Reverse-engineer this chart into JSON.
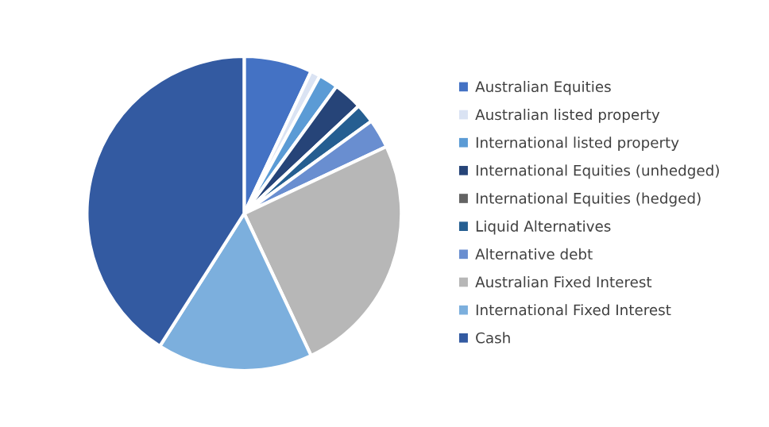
{
  "chart_data": {
    "type": "pie",
    "categories": [
      "Australian Equities",
      "Australian listed property",
      "International listed property",
      "International Equities (unhedged)",
      "International Equities (hedged)",
      "Liquid Alternatives",
      "Alternative debt",
      "Australian Fixed Interest",
      "International Fixed Interest",
      "Cash"
    ],
    "values": [
      7,
      1,
      2,
      3,
      0,
      2,
      3,
      25,
      16,
      41
    ],
    "colors": [
      "#4472c4",
      "#dae3f3",
      "#5b9bd5",
      "#264478",
      "#636363",
      "#255e91",
      "#698ed0",
      "#b7b7b7",
      "#7cafdd",
      "#335aa1"
    ],
    "legend": "right"
  }
}
